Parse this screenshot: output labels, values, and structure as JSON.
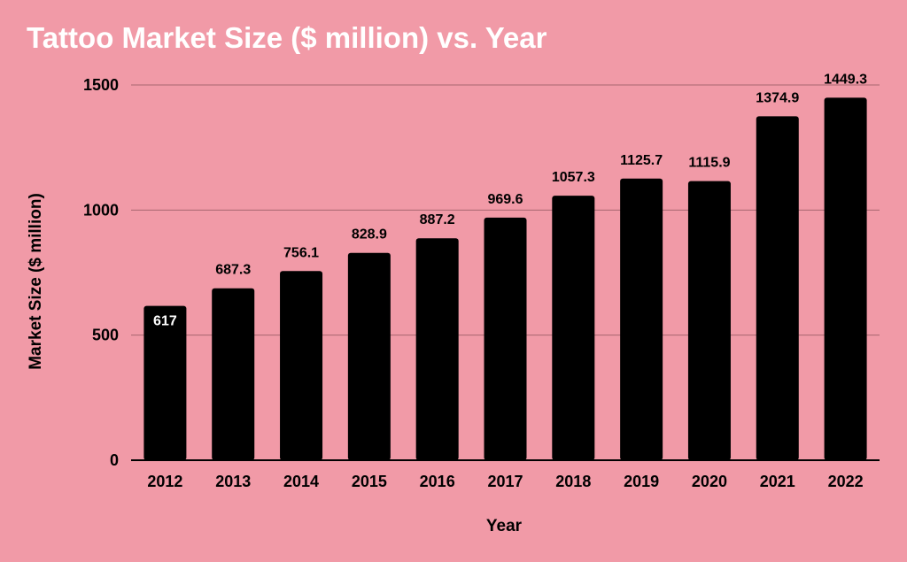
{
  "chart_data": {
    "type": "bar",
    "title": "Tattoo Market Size ($ million) vs. Year",
    "xlabel": "Year",
    "ylabel": "Market Size ($ million)",
    "categories": [
      "2012",
      "2013",
      "2014",
      "2015",
      "2016",
      "2017",
      "2018",
      "2019",
      "2020",
      "2021",
      "2022"
    ],
    "values": [
      617,
      687.3,
      756.1,
      828.9,
      887.2,
      969.6,
      1057.3,
      1125.7,
      1115.9,
      1374.9,
      1449.3
    ],
    "data_labels": [
      "617",
      "687.3",
      "756.1",
      "828.9",
      "887.2",
      "969.6",
      "1057.3",
      "1125.7",
      "1115.9",
      "1374.9",
      "1449.3"
    ],
    "yticks": [
      0,
      500,
      1000,
      1500
    ],
    "ytick_labels": [
      "0",
      "500",
      "1000",
      "1500"
    ],
    "ylim": [
      0,
      1500
    ],
    "grid": true,
    "legend": "none",
    "colors": {
      "background": "#f19aa7",
      "bar": "#000000",
      "grid": "#a7656f",
      "title": "#ffffff"
    }
  }
}
